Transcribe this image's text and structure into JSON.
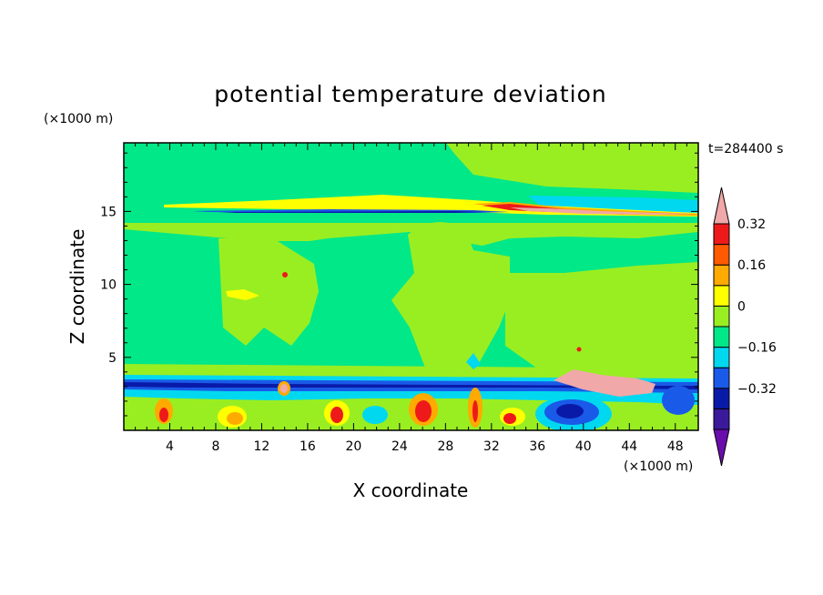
{
  "chart_data": {
    "type": "heatmap",
    "title": "potential temperature deviation",
    "time_label": "t=284400 s",
    "xlabel": "X coordinate",
    "ylabel": "Z coordinate",
    "x_unit": "(×1000 m)",
    "y_unit": "(×1000 m)",
    "xlim": [
      0,
      50
    ],
    "ylim": [
      0,
      19.7
    ],
    "x_ticks": [
      "4",
      "8",
      "12",
      "16",
      "20",
      "24",
      "28",
      "32",
      "36",
      "40",
      "44",
      "48"
    ],
    "y_ticks": [
      "5",
      "10",
      "15"
    ],
    "colorbar": {
      "labels": [
        "0.32",
        "0.16",
        "0",
        "−0.16",
        "−0.32"
      ],
      "levels": [
        -0.48,
        -0.4,
        -0.32,
        -0.24,
        -0.16,
        -0.08,
        0,
        0.08,
        0.16,
        0.24,
        0.32,
        0.4,
        0.48
      ],
      "colors": [
        "#6a0dad",
        "#3a1a9a",
        "#0a1aa8",
        "#1a5ae8",
        "#00d8f0",
        "#00e888",
        "#99ee22",
        "#ffff00",
        "#ffaa00",
        "#ff5a00",
        "#ee1a1a",
        "#f0a8a8"
      ]
    }
  }
}
